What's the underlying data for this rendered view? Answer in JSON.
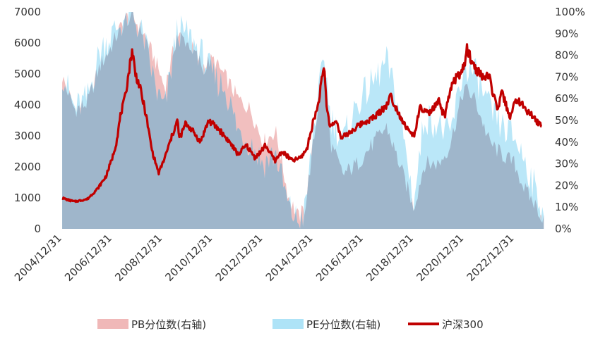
{
  "chart_data": {
    "type": "area",
    "title": "",
    "left_axis": {
      "ylim": [
        0,
        7000
      ],
      "ticks": [
        "0",
        "1000",
        "2000",
        "3000",
        "4000",
        "5000",
        "6000",
        "7000"
      ]
    },
    "right_axis": {
      "ylim": [
        0,
        100
      ],
      "ticks": [
        "0%",
        "10%",
        "20%",
        "30%",
        "40%",
        "50%",
        "60%",
        "70%",
        "80%",
        "90%",
        "100%"
      ]
    },
    "x_ticks": [
      "2004/12/31",
      "2006/12/31",
      "2008/12/31",
      "2010/12/31",
      "2012/12/31",
      "2014/12/31",
      "2016/12/31",
      "2018/12/31",
      "2020/12/31",
      "2022/12/31"
    ],
    "grid": false,
    "legend_position": "bottom",
    "series": [
      {
        "name": "PB分位数(右轴)",
        "axis": "right",
        "kind": "area",
        "color": "#f0b8b8",
        "x": [
          "2005-01-01",
          "2005-07-01",
          "2006-01-01",
          "2006-07-01",
          "2007-01-01",
          "2007-07-01",
          "2007-10-15",
          "2008-04-01",
          "2008-10-15",
          "2009-02-01",
          "2009-08-01",
          "2010-02-01",
          "2010-08-01",
          "2011-01-01",
          "2011-07-01",
          "2012-01-01",
          "2012-07-01",
          "2013-01-01",
          "2013-07-01",
          "2014-01-01",
          "2014-06-01",
          "2014-09-01",
          "2015-01-01",
          "2015-06-10",
          "2015-09-01",
          "2016-03-01",
          "2016-10-01",
          "2017-06-01",
          "2017-12-01",
          "2018-06-01",
          "2018-12-31",
          "2019-06-01",
          "2020-01-01",
          "2020-06-01",
          "2021-01-01",
          "2021-06-01",
          "2022-01-01",
          "2022-06-01",
          "2023-01-01",
          "2023-06-01",
          "2024-01-01",
          "2024-03-01"
        ],
        "values": [
          70,
          55,
          58,
          75,
          85,
          97,
          98,
          90,
          75,
          65,
          90,
          85,
          75,
          78,
          70,
          60,
          55,
          40,
          45,
          15,
          5,
          10,
          40,
          78,
          40,
          25,
          30,
          40,
          47,
          30,
          10,
          30,
          30,
          38,
          65,
          60,
          40,
          35,
          30,
          18,
          8,
          5
        ]
      },
      {
        "name": "PE分位数(右轴)",
        "axis": "right",
        "kind": "area",
        "color": "#aee3f7",
        "x": [
          "2005-01-01",
          "2005-07-01",
          "2006-01-01",
          "2006-07-01",
          "2007-01-01",
          "2007-07-01",
          "2007-10-15",
          "2008-04-01",
          "2008-10-15",
          "2009-02-01",
          "2009-08-01",
          "2010-02-01",
          "2010-08-01",
          "2011-01-01",
          "2011-07-01",
          "2012-01-01",
          "2012-07-01",
          "2013-01-01",
          "2013-07-01",
          "2014-01-01",
          "2014-06-01",
          "2014-09-01",
          "2015-01-01",
          "2015-06-10",
          "2015-09-01",
          "2016-03-01",
          "2016-10-01",
          "2017-06-01",
          "2017-12-01",
          "2018-06-01",
          "2018-12-31",
          "2019-06-01",
          "2020-01-01",
          "2020-06-01",
          "2021-01-01",
          "2021-06-01",
          "2022-01-01",
          "2022-06-01",
          "2023-01-01",
          "2023-06-01",
          "2024-01-01",
          "2024-03-01"
        ],
        "values": [
          72,
          55,
          60,
          82,
          90,
          97,
          99,
          88,
          62,
          55,
          92,
          88,
          80,
          70,
          65,
          45,
          40,
          30,
          35,
          10,
          3,
          8,
          45,
          80,
          52,
          40,
          58,
          68,
          77,
          55,
          12,
          52,
          48,
          42,
          75,
          72,
          55,
          48,
          42,
          32,
          12,
          10
        ]
      },
      {
        "name": "沪深300",
        "axis": "left",
        "kind": "line",
        "color": "#c00000",
        "x": [
          "2005-01-01",
          "2005-04-01",
          "2005-07-01",
          "2005-10-01",
          "2006-01-01",
          "2006-06-01",
          "2006-10-01",
          "2007-01-01",
          "2007-03-01",
          "2007-05-01",
          "2007-07-01",
          "2007-10-16",
          "2007-12-01",
          "2008-02-01",
          "2008-05-01",
          "2008-08-01",
          "2008-11-04",
          "2009-02-01",
          "2009-05-01",
          "2009-08-04",
          "2009-09-01",
          "2009-12-01",
          "2010-03-01",
          "2010-07-01",
          "2010-11-01",
          "2011-04-01",
          "2011-09-01",
          "2011-12-31",
          "2012-05-01",
          "2012-09-01",
          "2012-12-01",
          "2013-02-01",
          "2013-06-25",
          "2013-10-01",
          "2014-03-01",
          "2014-07-01",
          "2014-10-01",
          "2014-12-31",
          "2015-03-01",
          "2015-06-08",
          "2015-07-08",
          "2015-09-01",
          "2015-12-15",
          "2016-02-01",
          "2016-06-01",
          "2016-12-01",
          "2017-06-01",
          "2017-12-01",
          "2018-01-24",
          "2018-06-01",
          "2018-10-01",
          "2018-12-31",
          "2019-04-01",
          "2019-08-01",
          "2019-12-31",
          "2020-03-20",
          "2020-07-10",
          "2020-12-31",
          "2021-02-10",
          "2021-06-01",
          "2021-10-01",
          "2021-12-31",
          "2022-04-26",
          "2022-07-01",
          "2022-10-31",
          "2023-01-31",
          "2023-06-01",
          "2023-10-01",
          "2024-01-31"
        ],
        "values": [
          1000,
          930,
          880,
          920,
          960,
          1300,
          1700,
          2300,
          2800,
          3700,
          4200,
          5800,
          5000,
          4600,
          3700,
          2500,
          1800,
          2300,
          2900,
          3500,
          2900,
          3400,
          3200,
          2800,
          3500,
          3200,
          2800,
          2400,
          2700,
          2300,
          2500,
          2700,
          2200,
          2500,
          2200,
          2300,
          2600,
          3500,
          3900,
          5300,
          4000,
          3300,
          3500,
          2900,
          3100,
          3400,
          3600,
          4000,
          4300,
          3700,
          3200,
          3000,
          3900,
          3700,
          4100,
          3600,
          4700,
          5200,
          5800,
          5200,
          4900,
          4900,
          3800,
          4400,
          3600,
          4200,
          3900,
          3600,
          3300
        ]
      }
    ]
  }
}
